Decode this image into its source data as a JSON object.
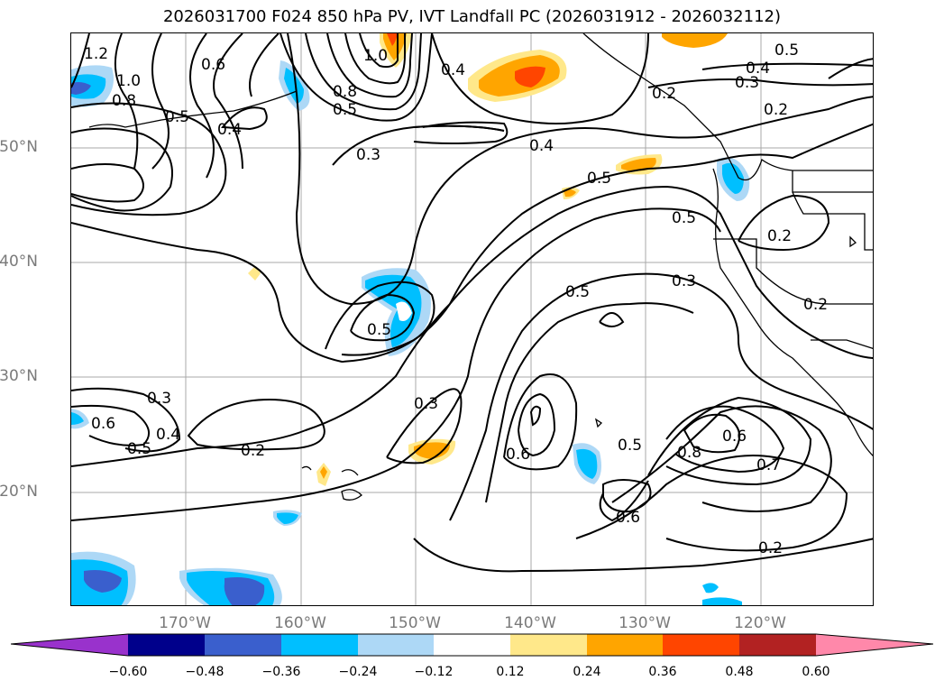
{
  "title": "2026031700 F024 850 hPa PV, IVT Landfall PC (2026031912 - 2026032112)",
  "latitude_labels": [
    "50°N",
    "40°N",
    "30°N",
    "20°N"
  ],
  "longitude_labels": [
    "170°W",
    "160°W",
    "150°W",
    "140°W",
    "130°W",
    "120°W"
  ],
  "colorbar": {
    "ticks": [
      "−0.60",
      "−0.48",
      "−0.36",
      "−0.24",
      "−0.12",
      "0.12",
      "0.24",
      "0.36",
      "0.48",
      "0.60"
    ],
    "colors": [
      "#9932CC",
      "#00008B",
      "#3A5FCD",
      "#00BFFF",
      "#ADD8F6",
      "#FFFFFF",
      "#FFE88A",
      "#FFA500",
      "#FF4500",
      "#B22222",
      "#FF88AA"
    ]
  },
  "contour_labels": [
    "1.2",
    "1.0",
    "0.8",
    "0.6",
    "0.5",
    "0.4",
    "0.3",
    "0.2",
    "0.7"
  ]
}
